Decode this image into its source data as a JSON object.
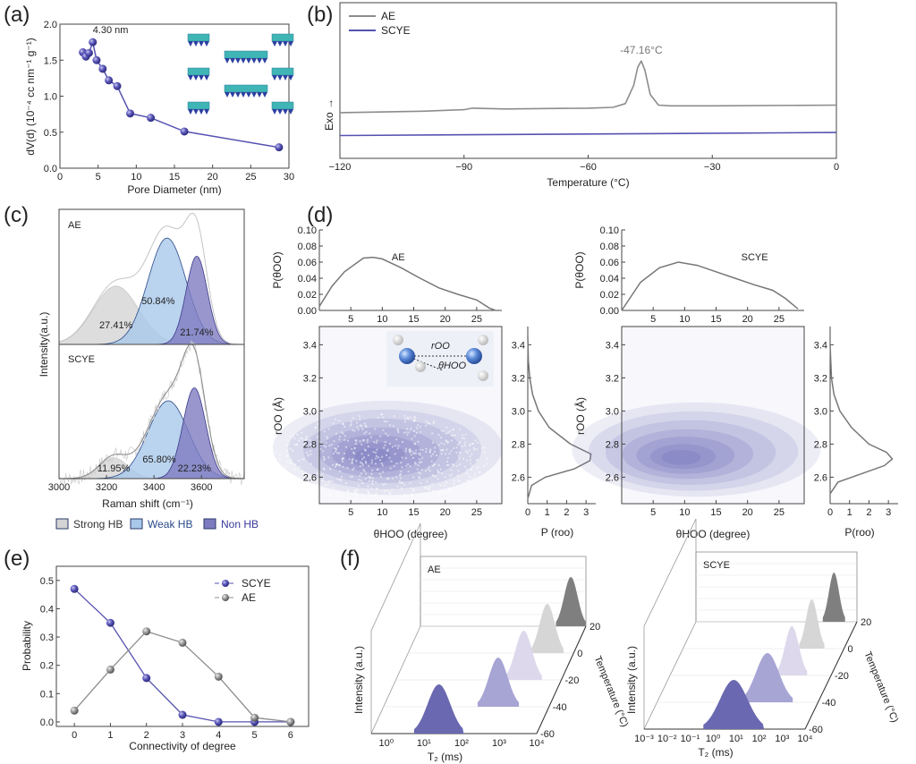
{
  "panels": [
    "(a)",
    "(b)",
    "(c)",
    "(d)",
    "(e)",
    "(f)"
  ],
  "colors": {
    "purple": "#5552b0",
    "gray": "#8c8c8c",
    "strong_hb": "#d4d4d4",
    "weak_hb": "#a9c8ea",
    "non_hb": "#7e7cc0"
  },
  "chart_data": [
    {
      "id": "a",
      "type": "line",
      "xlabel": "Pore Diameter (nm)",
      "ylabel": "dV(d) (10⁻⁴ cc nm⁻¹ g⁻¹)",
      "xlim": [
        0,
        30
      ],
      "ylim": [
        0,
        2.0
      ],
      "xticks": [
        0,
        5,
        10,
        15,
        20,
        25,
        30
      ],
      "yticks": [
        0.0,
        0.5,
        1.0,
        1.5,
        2.0
      ],
      "annotation": "4.30 nm",
      "x": [
        3.0,
        3.4,
        3.8,
        4.3,
        4.8,
        5.6,
        6.4,
        7.5,
        9.2,
        11.9,
        16.3,
        28.7
      ],
      "y": [
        1.61,
        1.55,
        1.6,
        1.75,
        1.5,
        1.38,
        1.22,
        1.14,
        0.76,
        0.7,
        0.51,
        0.29
      ],
      "inset": "pore-structure"
    },
    {
      "id": "b",
      "type": "line",
      "xlabel": "Temperature (°C)",
      "ylabel": "Exo →",
      "xlim": [
        -120,
        0
      ],
      "xticks": [
        -120,
        -90,
        -60,
        -30,
        0
      ],
      "ylim": [
        0,
        1
      ],
      "annotation": "-47.16°C",
      "legend": "top-left",
      "series": [
        {
          "name": "AE",
          "color": "#8c8c8c",
          "x": [
            -120,
            -100,
            -90,
            -88,
            -80,
            -60,
            -54,
            -51,
            -49,
            -48,
            -47.16,
            -46.3,
            -45,
            -43,
            -40,
            -30,
            0
          ],
          "y": [
            0.3,
            0.31,
            0.32,
            0.33,
            0.325,
            0.33,
            0.335,
            0.36,
            0.48,
            0.6,
            0.64,
            0.58,
            0.42,
            0.35,
            0.345,
            0.345,
            0.35
          ]
        },
        {
          "name": "SCYE",
          "color": "#5552b0",
          "x": [
            -120,
            0
          ],
          "y": [
            0.15,
            0.17
          ]
        }
      ]
    },
    {
      "id": "c",
      "type": "area",
      "xlabel": "Raman shift (cm⁻¹)",
      "ylabel": "Intensity(a.u.)",
      "xlim": [
        3000,
        3780
      ],
      "xticks": [
        3000,
        3200,
        3400,
        3600
      ],
      "legend": [
        "Strong HB",
        "Weak HB",
        "Non HB"
      ],
      "subplots": [
        {
          "name": "AE",
          "components": [
            {
              "label": "27.41%",
              "center": 3240,
              "amp": 0.45,
              "sigma": 95
            },
            {
              "label": "50.84%",
              "center": 3455,
              "amp": 0.82,
              "sigma": 80
            },
            {
              "label": "21.74%",
              "center": 3580,
              "amp": 0.68,
              "sigma": 45
            }
          ]
        },
        {
          "name": "SCYE",
          "components": [
            {
              "label": "11.95%",
              "center": 3230,
              "amp": 0.16,
              "sigma": 60
            },
            {
              "label": "65.80%",
              "center": 3460,
              "amp": 0.6,
              "sigma": 85
            },
            {
              "label": "22.23%",
              "center": 3570,
              "amp": 0.7,
              "sigma": 48
            }
          ]
        }
      ]
    },
    {
      "id": "d",
      "type": "heatmap",
      "xlabel": "θHOO (degree)",
      "ylabel": "rOO (Å)",
      "top_ylabel": "P(θOO)",
      "right_xlabel_ae": "P (roo)",
      "right_xlabel_scye": "P(roo)",
      "xlim": [
        0,
        29
      ],
      "ylim": [
        2.44,
        3.51
      ],
      "xticks": [
        5,
        10,
        15,
        20,
        25
      ],
      "yticks": [
        2.6,
        2.8,
        3.0,
        3.2,
        3.4
      ],
      "top_ylim": [
        0,
        0.1
      ],
      "top_yticks": [
        0.0,
        0.02,
        0.04,
        0.06,
        0.08,
        0.1
      ],
      "right_xlim": [
        0,
        3.5
      ],
      "right_xticks": [
        0,
        1,
        2,
        3
      ],
      "inset_labels": {
        "r": "rOO",
        "theta": "θHOO"
      },
      "subplots": [
        {
          "name": "AE",
          "density_center": [
            8,
            2.72
          ],
          "density_spread": [
            6,
            0.1
          ],
          "p_theta": {
            "x": [
              0,
              2,
              4,
              7,
              8.5,
              10,
              13,
              16,
              19,
              22,
              25,
              27,
              28
            ],
            "y": [
              0.005,
              0.03,
              0.048,
              0.065,
              0.066,
              0.064,
              0.053,
              0.04,
              0.028,
              0.02,
              0.013,
              0.003,
              0
            ]
          },
          "p_r": {
            "r": [
              2.47,
              2.55,
              2.6,
              2.65,
              2.7,
              2.74,
              2.8,
              2.9,
              3.0,
              3.1,
              3.2,
              3.3,
              3.45
            ],
            "p": [
              0,
              0.2,
              0.9,
              2.4,
              3.2,
              3.25,
              2.2,
              1.1,
              0.55,
              0.25,
              0.1,
              0.03,
              0
            ]
          }
        },
        {
          "name": "SCYE",
          "density_center": [
            9,
            2.71
          ],
          "density_spread": [
            6.5,
            0.1
          ],
          "p_theta": {
            "x": [
              0,
              3,
              6,
              9,
              12,
              15,
              18,
              21,
              24,
              26,
              28
            ],
            "y": [
              0,
              0.035,
              0.053,
              0.06,
              0.056,
              0.048,
              0.04,
              0.032,
              0.025,
              0.015,
              0.002
            ]
          },
          "p_r": {
            "r": [
              2.5,
              2.57,
              2.62,
              2.67,
              2.71,
              2.75,
              2.8,
              2.9,
              3.0,
              3.1,
              3.2,
              3.4
            ],
            "p": [
              0,
              0.4,
              1.6,
              2.8,
              3.2,
              2.9,
              2.0,
              1.1,
              0.5,
              0.2,
              0.07,
              0
            ]
          }
        }
      ]
    },
    {
      "id": "e",
      "type": "line",
      "xlabel": "Connectivity of degree",
      "ylabel": "Probability",
      "xlim": [
        -0.5,
        6.5
      ],
      "ylim": [
        -0.016,
        0.55
      ],
      "xticks": [
        0,
        1,
        2,
        3,
        4,
        5,
        6
      ],
      "yticks": [
        0.0,
        0.1,
        0.2,
        0.3,
        0.4,
        0.5
      ],
      "legend": "top-right",
      "categories": [
        0,
        1,
        2,
        3,
        4,
        5,
        6
      ],
      "series": [
        {
          "name": "SCYE",
          "color": "#5552b0",
          "values": [
            0.47,
            0.35,
            0.155,
            0.025,
            0.0,
            0.0,
            0.0
          ]
        },
        {
          "name": "AE",
          "color": "#8c8c8c",
          "values": [
            0.04,
            0.185,
            0.32,
            0.28,
            0.16,
            0.015,
            0.0
          ]
        }
      ]
    },
    {
      "id": "f",
      "type": "area",
      "xlabel": "T₂ (ms)",
      "ylabel": "Intensity (a.u.)",
      "zlabel": "Temperature (°C)",
      "temperatures": [
        -60,
        -40,
        -20,
        0,
        20
      ],
      "zticks": [
        "-60",
        "-40",
        "-20",
        "0",
        "20"
      ],
      "subplots": [
        {
          "name": "AE",
          "xticks": [
            "10⁰",
            "10¹",
            "10²",
            "10³",
            "10⁴"
          ],
          "log_xlim": [
            -0.4,
            4
          ],
          "peak_T2_log10": [
            1.4,
            2.65,
            3.0,
            3.3,
            3.6
          ],
          "peak_width_log10": [
            0.3,
            0.25,
            0.22,
            0.2,
            0.18
          ]
        },
        {
          "name": "SCYE",
          "xticks": [
            "10⁻³",
            "10⁻²",
            "10⁻¹",
            "10⁰",
            "10¹",
            "10²",
            "10³",
            "10⁴"
          ],
          "log_xlim": [
            -3,
            4
          ],
          "peak_T2_log10": [
            0.9,
            1.8,
            2.3,
            2.6,
            3.0
          ],
          "peak_width_log10": [
            0.6,
            0.5,
            0.3,
            0.25,
            0.22
          ]
        }
      ]
    }
  ]
}
